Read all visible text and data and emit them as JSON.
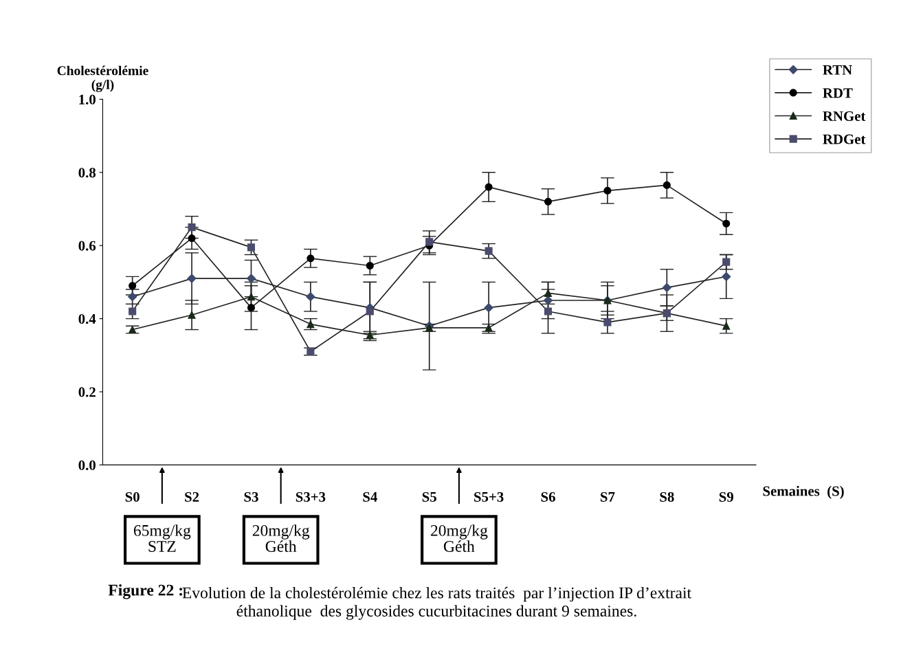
{
  "chart_data": {
    "type": "line",
    "categories": [
      "S0",
      "S2",
      "S3",
      "S3+3",
      "S4",
      "S5",
      "S5+3",
      "S6",
      "S7",
      "S8",
      "S9"
    ],
    "series": [
      {
        "name": "RTN",
        "color": "#3d4a6b",
        "marker": "diamond",
        "values": [
          0.46,
          0.51,
          0.51,
          0.46,
          0.43,
          0.38,
          0.43,
          0.45,
          0.45,
          0.485,
          0.515
        ],
        "errors": [
          0.02,
          0.07,
          0.05,
          0.04,
          0.07,
          0.12,
          0.07,
          0.05,
          0.05,
          0.05,
          0.06
        ]
      },
      {
        "name": "RDT",
        "color": "#000000",
        "marker": "circle",
        "values": [
          0.49,
          0.62,
          0.43,
          0.565,
          0.545,
          0.6,
          0.76,
          0.72,
          0.75,
          0.765,
          0.66
        ],
        "errors": [
          0.025,
          0.03,
          0.06,
          0.025,
          0.025,
          0.025,
          0.04,
          0.035,
          0.035,
          0.035,
          0.03
        ]
      },
      {
        "name": "RNGet",
        "color": "#1a2a1a",
        "marker": "triangle",
        "values": [
          0.37,
          0.41,
          0.46,
          0.385,
          0.355,
          0.375,
          0.375,
          0.47,
          0.45,
          0.415,
          0.38
        ],
        "errors": [
          0.01,
          0.04,
          0.04,
          0.015,
          0.01,
          0.01,
          0.01,
          0.03,
          0.04,
          0.05,
          0.02
        ]
      },
      {
        "name": "RDGet",
        "color": "#4b4b6e",
        "marker": "square",
        "values": [
          0.42,
          0.65,
          0.595,
          0.31,
          0.42,
          0.61,
          0.585,
          0.42,
          0.39,
          0.415,
          0.555
        ],
        "errors": [
          0.02,
          0.03,
          0.02,
          0.01,
          0.08,
          0.03,
          0.02,
          0.06,
          0.03,
          0.02,
          0.02
        ]
      }
    ],
    "ylabel": "Cholestérolémie\n(g/l)",
    "xlabel": "Semaines  (S)",
    "ylim": [
      0,
      1
    ],
    "yticks": [
      {
        "value": 0,
        "label": "0.0"
      },
      {
        "value": 0.2,
        "label": "0.2"
      },
      {
        "value": 0.4,
        "label": "0.4"
      },
      {
        "value": 0.6,
        "label": "0.6"
      },
      {
        "value": 0.8,
        "label": "0.8"
      },
      {
        "value": 1,
        "label": "1.0"
      }
    ],
    "grid": false,
    "legend": "top right",
    "line_style": "solid",
    "annotations": [
      "65mg/kg\nSTZ",
      "20mg/kg\nGéth",
      "20mg/kg\nGéth",
      "Figure 22 :",
      "Evolution de la cholestérolémie chez les rats traités  par l’injection IP d’extrait\néthanolique  des glycosides cucurbitacines durant 9 semaines."
    ]
  }
}
